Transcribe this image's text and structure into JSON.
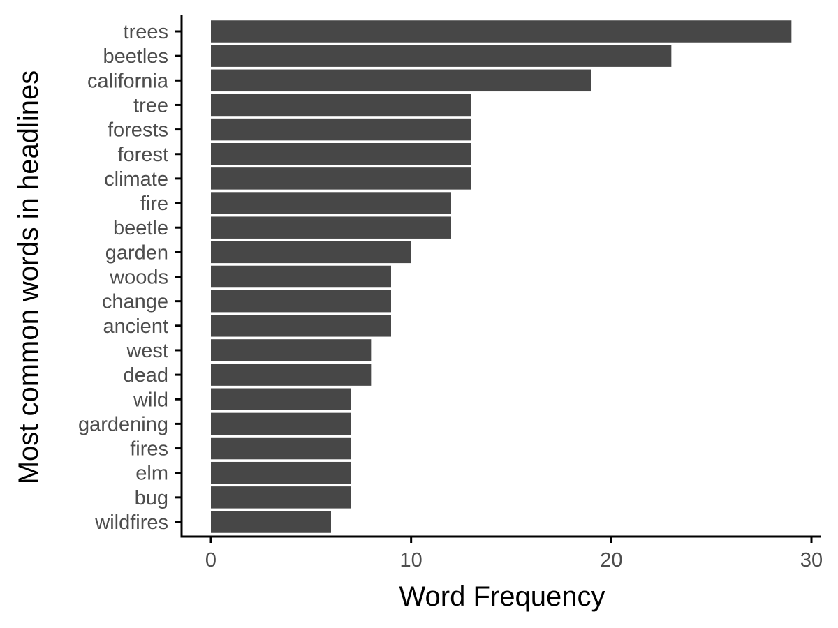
{
  "chart_data": {
    "type": "bar",
    "orientation": "horizontal",
    "title": "",
    "xlabel": "Word Frequency",
    "ylabel": "Most common words in headlines",
    "categories": [
      "trees",
      "beetles",
      "california",
      "tree",
      "forests",
      "forest",
      "climate",
      "fire",
      "beetle",
      "garden",
      "woods",
      "change",
      "ancient",
      "west",
      "dead",
      "wild",
      "gardening",
      "fires",
      "elm",
      "bug",
      "wildfires"
    ],
    "values": [
      29,
      23,
      19,
      13,
      13,
      13,
      13,
      12,
      12,
      10,
      9,
      9,
      9,
      8,
      8,
      7,
      7,
      7,
      7,
      7,
      6
    ],
    "xlim": [
      0,
      30
    ],
    "xticks": [
      0,
      10,
      20,
      30
    ],
    "grid": false,
    "legend": "none",
    "bar_color": "#474747",
    "axis_color": "#000000"
  }
}
